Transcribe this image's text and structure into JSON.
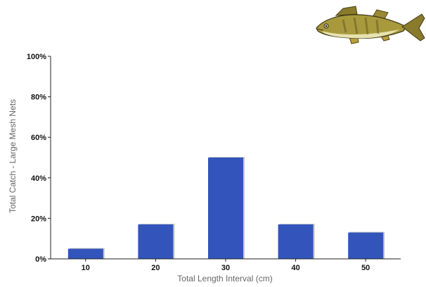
{
  "chart_data": {
    "type": "bar",
    "categories": [
      "10",
      "20",
      "30",
      "40",
      "50"
    ],
    "values": [
      5,
      17,
      50,
      17,
      13
    ],
    "ylim": [
      0,
      100
    ],
    "yticks": [
      "0%",
      "20%",
      "40%",
      "60%",
      "80%",
      "100%"
    ],
    "ytick_values": [
      0,
      20,
      40,
      60,
      80,
      100
    ],
    "xlabel": "Total Length Interval (cm)",
    "ylabel": "Total Catch - Large Mesh Nets",
    "grid": false,
    "bar_color": "#3355bb",
    "bar_shadow_color": "#c7c7c7",
    "decoration_icon": "walleye-fish-icon"
  }
}
